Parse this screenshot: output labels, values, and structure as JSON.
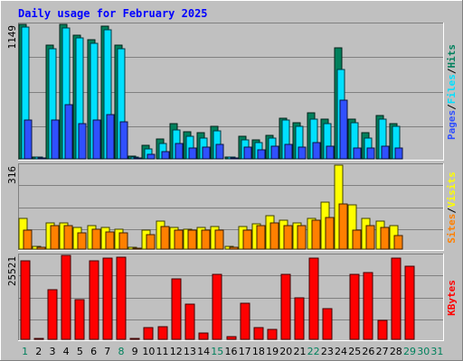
{
  "chart_data": [
    {
      "type": "bar",
      "title": "Daily usage for February 2025",
      "y_max_label": "1149",
      "ylim": [
        0,
        1149
      ],
      "legend_position": "right",
      "categories": [
        "1",
        "2",
        "3",
        "4",
        "5",
        "6",
        "7",
        "8",
        "9",
        "10",
        "11",
        "12",
        "13",
        "14",
        "15",
        "16",
        "17",
        "18",
        "19",
        "20",
        "21",
        "22",
        "23",
        "24",
        "25",
        "26",
        "27",
        "28",
        "29",
        "30",
        "31"
      ],
      "weekend_days": [
        "1",
        "8",
        "15",
        "22"
      ],
      "future_days": [
        "29",
        "30",
        "31"
      ],
      "series": [
        {
          "name": "Hits",
          "color": "#00805c",
          "values": [
            1149,
            18,
            970,
            1149,
            1060,
            1020,
            1130,
            970,
            20,
            115,
            170,
            300,
            230,
            220,
            280,
            18,
            190,
            160,
            200,
            350,
            310,
            390,
            340,
            950,
            340,
            220,
            370,
            300,
            0,
            0,
            0
          ]
        },
        {
          "name": "Files",
          "color": "#00e0ff",
          "values": [
            1125,
            16,
            940,
            1120,
            1030,
            990,
            1100,
            940,
            16,
            85,
            130,
            250,
            190,
            180,
            240,
            14,
            165,
            135,
            175,
            330,
            280,
            340,
            300,
            760,
            310,
            180,
            340,
            280,
            0,
            0,
            0
          ]
        },
        {
          "name": "Pages",
          "color": "#3050ff",
          "values": [
            330,
            4,
            330,
            460,
            300,
            330,
            380,
            320,
            4,
            40,
            60,
            130,
            90,
            100,
            120,
            4,
            100,
            80,
            110,
            120,
            100,
            140,
            110,
            500,
            90,
            90,
            110,
            90,
            0,
            0,
            0
          ]
        }
      ]
    },
    {
      "type": "bar",
      "y_max_label": "316",
      "ylim": [
        0,
        316
      ],
      "series": [
        {
          "name": "Visits",
          "color": "#ffff00",
          "values": [
            115,
            10,
            100,
            100,
            80,
            90,
            80,
            75,
            6,
            70,
            105,
            80,
            75,
            80,
            85,
            10,
            85,
            95,
            125,
            110,
            100,
            115,
            175,
            316,
            165,
            115,
            105,
            90,
            0,
            0,
            0
          ]
        },
        {
          "name": "Sites",
          "color": "#ff8000",
          "values": [
            70,
            6,
            90,
            90,
            60,
            75,
            65,
            60,
            4,
            55,
            85,
            70,
            70,
            70,
            70,
            8,
            70,
            90,
            100,
            90,
            90,
            110,
            120,
            170,
            70,
            90,
            80,
            50,
            0,
            0,
            0
          ]
        }
      ]
    },
    {
      "type": "bar",
      "y_max_label": "25521",
      "ylim": [
        0,
        25521
      ],
      "series": [
        {
          "name": "KBytes",
          "color": "#ff0000",
          "values": [
            23800,
            400,
            15200,
            25521,
            12200,
            23800,
            24600,
            25000,
            400,
            3500,
            3800,
            18400,
            10800,
            1800,
            19800,
            700,
            11000,
            3500,
            2900,
            19800,
            12600,
            24600,
            9400,
            0,
            19800,
            20400,
            5800,
            24600,
            22100,
            0,
            0
          ]
        }
      ]
    }
  ]
}
